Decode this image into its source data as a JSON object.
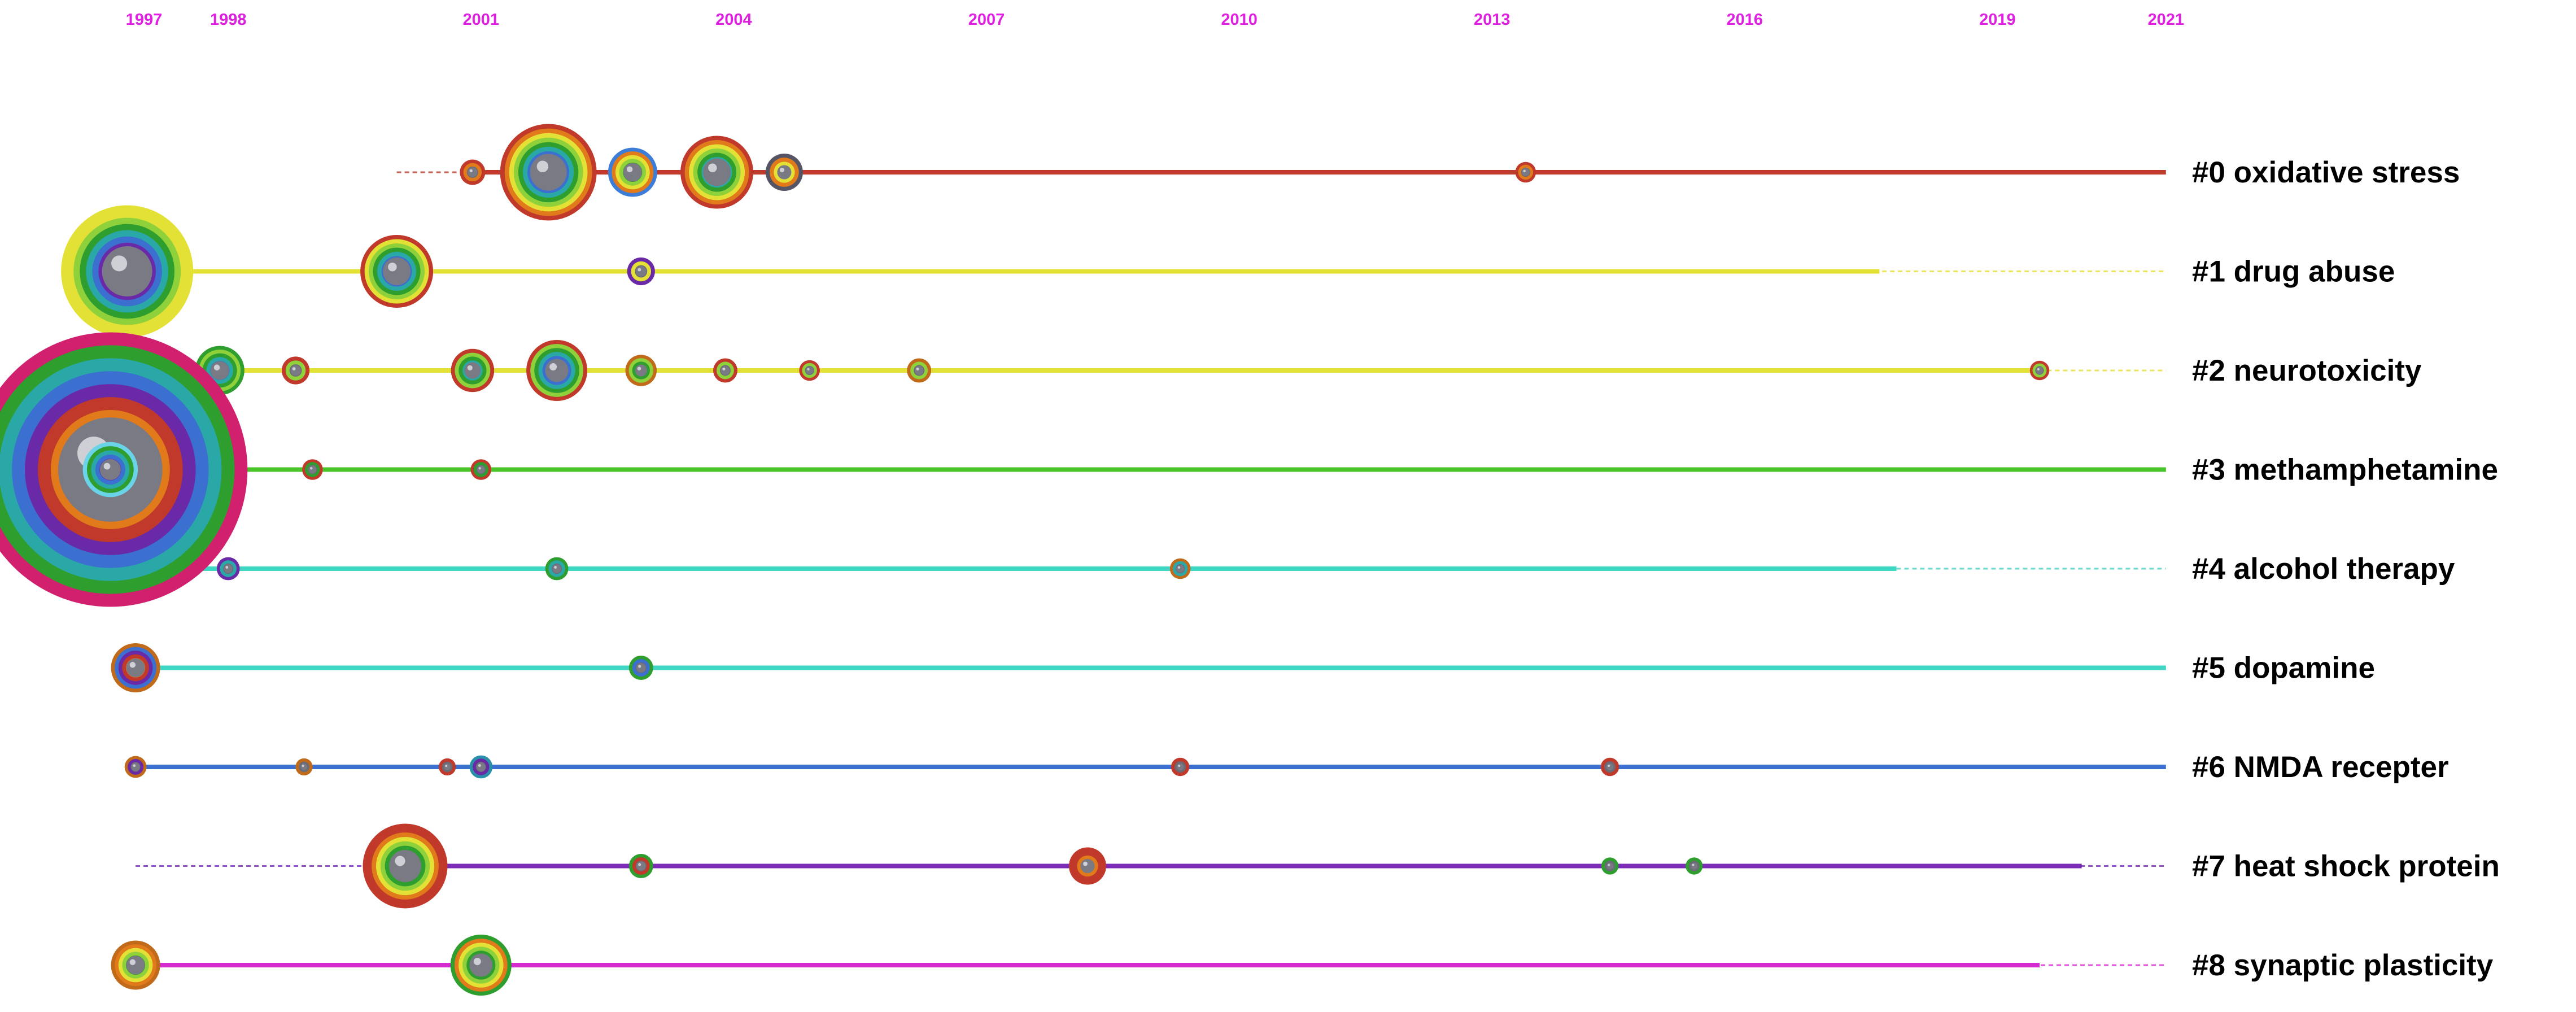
{
  "chart_data": {
    "type": "timeline",
    "title": "",
    "xlabel": "",
    "ylabel": "",
    "year_range": [
      1996.0,
      2021.5
    ],
    "years": [
      1997,
      1998,
      2001,
      2004,
      2007,
      2010,
      2013,
      2016,
      2019,
      2021
    ],
    "year_label_color": "#e020e0",
    "clusters": [
      {
        "id": 0,
        "label": "#0 oxidative stress",
        "color": "#c0392b",
        "start": 2000.0,
        "end": 2021,
        "solid_from": 2000.9,
        "solid_to": 2021,
        "ring_colors": [
          "#a8201a",
          "#d6501c"
        ],
        "nodes": [
          {
            "year": 2000.9,
            "size": 1,
            "ring": "#c0392b"
          },
          {
            "year": 2001.8,
            "size": 7,
            "ring": "#c0392b"
          },
          {
            "year": 2002.8,
            "size": 3,
            "ring": "#3b7dd8"
          },
          {
            "year": 2003.8,
            "size": 5,
            "ring": "#c0392b"
          },
          {
            "year": 2004.6,
            "size": 2,
            "ring": "#555566"
          },
          {
            "year": 2013.4,
            "size": 0.6,
            "ring": "#c0392b"
          }
        ]
      },
      {
        "id": 1,
        "label": "#1 drug abuse",
        "color": "#e4e136",
        "start": 1996.8,
        "end": 2021,
        "solid_from": 1996.8,
        "solid_to": 2017.6,
        "ring_colors": [
          "#e4e136"
        ],
        "nodes": [
          {
            "year": 1996.8,
            "size": 10,
            "ring": "#e4e136"
          },
          {
            "year": 2000.0,
            "size": 5,
            "ring": "#c0392b"
          },
          {
            "year": 2002.9,
            "size": 1.2,
            "ring": "#6a2aa8"
          }
        ]
      },
      {
        "id": 2,
        "label": "#2 neurotoxicity",
        "color": "#e4e136",
        "start": 1996.6,
        "end": 2021,
        "solid_from": 1996.6,
        "solid_to": 2019.5,
        "ring_colors": [
          "#e4e136"
        ],
        "nodes": [
          {
            "year": 1996.6,
            "size": 0.9,
            "ring": "#2e9e2e"
          },
          {
            "year": 1997.0,
            "size": 3,
            "ring": "#e4e136"
          },
          {
            "year": 1997.9,
            "size": 3,
            "ring": "#2e9e2e"
          },
          {
            "year": 1998.8,
            "size": 1.2,
            "ring": "#c0392b"
          },
          {
            "year": 2000.9,
            "size": 2.5,
            "ring": "#c0392b"
          },
          {
            "year": 2001.9,
            "size": 4,
            "ring": "#c0392b"
          },
          {
            "year": 2002.9,
            "size": 1.5,
            "ring": "#c06a1a"
          },
          {
            "year": 2003.9,
            "size": 0.9,
            "ring": "#c0392b"
          },
          {
            "year": 2004.9,
            "size": 0.6,
            "ring": "#c0392b"
          },
          {
            "year": 2006.2,
            "size": 0.9,
            "ring": "#c06a1a"
          },
          {
            "year": 2019.5,
            "size": 0.5,
            "ring": "#c0392b"
          }
        ]
      },
      {
        "id": 3,
        "label": "#3 methamphetamine",
        "color": "#49c42a",
        "start": 1996.1,
        "end": 2021,
        "solid_from": 1996.1,
        "solid_to": 2021,
        "ring_colors": [
          "#49c42a"
        ],
        "nodes": [
          {
            "year": 1996.6,
            "size": 22,
            "ring": "#d1206e"
          },
          {
            "year": 1996.6,
            "size": 3.5,
            "ring": "#6ad3e8"
          },
          {
            "year": 1999.0,
            "size": 0.6,
            "ring": "#c0392b"
          },
          {
            "year": 2001.0,
            "size": 0.6,
            "ring": "#c0392b"
          }
        ]
      },
      {
        "id": 4,
        "label": "#4 alcohol therapy",
        "color": "#3fd6c4",
        "start": 1996.5,
        "end": 2021,
        "solid_from": 1996.5,
        "solid_to": 2017.8,
        "ring_colors": [
          "#3fd6c4"
        ],
        "nodes": [
          {
            "year": 1998.0,
            "size": 0.8,
            "ring": "#6a2aa8"
          },
          {
            "year": 2001.9,
            "size": 0.8,
            "ring": "#2e9e2e"
          },
          {
            "year": 2009.3,
            "size": 0.6,
            "ring": "#c06a1a"
          }
        ]
      },
      {
        "id": 5,
        "label": "#5 dopamine",
        "color": "#3fd6c4",
        "start": 1996.9,
        "end": 2021,
        "solid_from": 1996.9,
        "solid_to": 2021,
        "ring_colors": [
          "#3fd6c4"
        ],
        "nodes": [
          {
            "year": 1996.9,
            "size": 3,
            "ring": "#c06a1a"
          },
          {
            "year": 2002.9,
            "size": 0.9,
            "ring": "#2e9e2e"
          }
        ]
      },
      {
        "id": 6,
        "label": "#6 NMDA recepter",
        "color": "#3b6fd0",
        "start": 1996.9,
        "end": 2021,
        "solid_from": 1996.9,
        "solid_to": 2021,
        "ring_colors": [
          "#3b6fd0"
        ],
        "nodes": [
          {
            "year": 1996.9,
            "size": 0.7,
            "ring": "#c06a1a"
          },
          {
            "year": 1998.9,
            "size": 0.3,
            "ring": "#c06a1a"
          },
          {
            "year": 2000.6,
            "size": 0.3,
            "ring": "#c0392b"
          },
          {
            "year": 2001.0,
            "size": 0.8,
            "ring": "#2a8fa8"
          },
          {
            "year": 2009.3,
            "size": 0.4,
            "ring": "#c0392b"
          },
          {
            "year": 2014.4,
            "size": 0.4,
            "ring": "#c0392b"
          }
        ]
      },
      {
        "id": 7,
        "label": "#7 heat shock protein",
        "color": "#7b2ab8",
        "start": 1996.9,
        "end": 2021,
        "solid_from": 2000.1,
        "solid_to": 2020.0,
        "ring_colors": [
          "#7b2ab8"
        ],
        "nodes": [
          {
            "year": 2000.1,
            "size": 6,
            "ring": "#c0392b"
          },
          {
            "year": 2002.9,
            "size": 0.9,
            "ring": "#2e9e2e"
          },
          {
            "year": 2008.2,
            "size": 2,
            "ring": "#c0392b"
          },
          {
            "year": 2014.4,
            "size": 0.3,
            "ring": "#2e9e2e"
          },
          {
            "year": 2015.4,
            "size": 0.3,
            "ring": "#2e9e2e"
          }
        ]
      },
      {
        "id": 8,
        "label": "#8 synaptic plasticity",
        "color": "#d62ad0",
        "start": 1996.9,
        "end": 2021,
        "solid_from": 1996.9,
        "solid_to": 2019.5,
        "ring_colors": [
          "#d62ad0"
        ],
        "nodes": [
          {
            "year": 1996.9,
            "size": 3,
            "ring": "#c06a1a"
          },
          {
            "year": 2001.0,
            "size": 4,
            "ring": "#2e9e2e"
          }
        ]
      }
    ]
  }
}
